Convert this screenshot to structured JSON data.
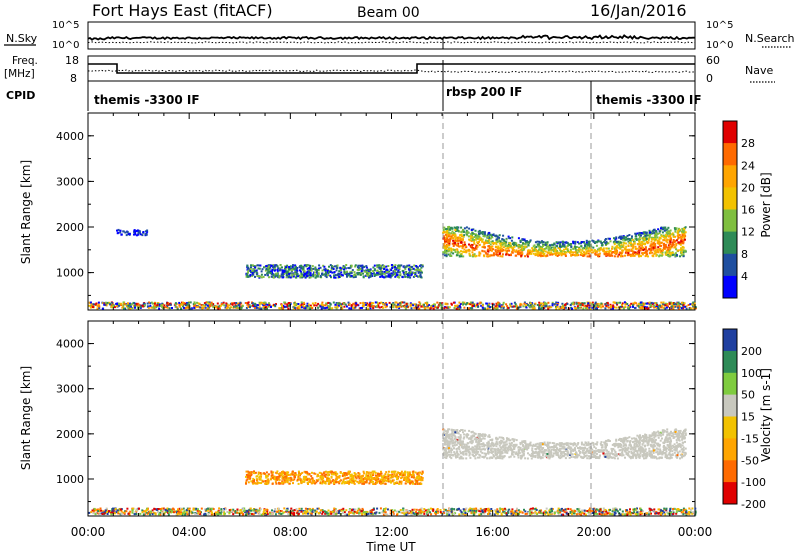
{
  "header": {
    "station": "Fort Hays East (fitACF)",
    "beam": "Beam 00",
    "date": "16/Jan/2016"
  },
  "strips": {
    "nsky": {
      "left_label": "N.Sky",
      "right_label": "N.Search",
      "left_ticks": [
        "10^5",
        "10^0"
      ],
      "right_ticks": [
        "10^5",
        "10^0"
      ]
    },
    "freq": {
      "left_label_1": "Freq.",
      "left_label_2": "[MHz]",
      "left_ticks": [
        "18",
        "8"
      ],
      "right_label": "Nave",
      "right_ticks": [
        "60",
        "0"
      ]
    },
    "cpid": {
      "label": "CPID",
      "segments": [
        {
          "start": 0,
          "end": 14,
          "name": "themis -3300 IF"
        },
        {
          "start": 14,
          "end": 20,
          "name": "rbsp 200 IF"
        },
        {
          "start": 20,
          "end": 24,
          "name": "themis -3300 IF"
        }
      ]
    }
  },
  "chart_data": [
    {
      "type": "heatmap",
      "name": "power",
      "ylabel": "Slant Range [km]",
      "ylim": [
        180,
        4500
      ],
      "yticks": [
        1000,
        2000,
        3000,
        4000
      ],
      "xlim": [
        0,
        24
      ],
      "colorbar": {
        "label": "Power [dB]",
        "ticks": [
          "28",
          "24",
          "20",
          "16",
          "12",
          "8",
          "4"
        ],
        "colors": [
          "#e00000",
          "#ff6a00",
          "#ffa500",
          "#f2c200",
          "#7fbf3f",
          "#2e8b57",
          "#1f4fa0",
          "#0000ff"
        ]
      },
      "scatter_bands": [
        {
          "t_start": 0,
          "t_end": 24,
          "range_center": 300,
          "range_width": 140,
          "level": "mixed"
        },
        {
          "t_start": 1.1,
          "t_end": 2.3,
          "range_center": 1900,
          "range_width": 120,
          "level": "low"
        },
        {
          "t_start": 6.2,
          "t_end": 13.2,
          "range_center": 1050,
          "range_width": 280,
          "level": "mid-low"
        },
        {
          "t_start": 14.0,
          "t_end": 23.6,
          "range_center": 1700,
          "range_width": 650,
          "level": "high"
        }
      ]
    },
    {
      "type": "heatmap",
      "name": "velocity",
      "ylabel": "Slant Range [km]",
      "xlabel": "Time UT",
      "ylim": [
        180,
        4500
      ],
      "yticks": [
        1000,
        2000,
        3000,
        4000
      ],
      "xlim": [
        0,
        24
      ],
      "xticks": [
        "00:00",
        "04:00",
        "08:00",
        "12:00",
        "16:00",
        "20:00",
        "00:00"
      ],
      "colorbar": {
        "label": "Velocity [m s-1]",
        "ticks": [
          "200",
          "100",
          "50",
          "15",
          "-15",
          "-50",
          "-100",
          "-200"
        ],
        "colors": [
          "#1f3fa0",
          "#2e8b57",
          "#7fcc3f",
          "#c8c8be",
          "#f2c200",
          "#ffa500",
          "#ff6a00",
          "#e00000"
        ]
      },
      "scatter_bands": [
        {
          "t_start": 0,
          "t_end": 24,
          "range_center": 300,
          "range_width": 140,
          "level": "mixed"
        },
        {
          "t_start": 6.2,
          "t_end": 13.2,
          "range_center": 1050,
          "range_width": 280,
          "level": "negative"
        },
        {
          "t_start": 14.0,
          "t_end": 23.6,
          "range_center": 1800,
          "range_width": 650,
          "level": "ground"
        }
      ]
    }
  ],
  "xticks_labels": [
    "00:00",
    "04:00",
    "08:00",
    "12:00",
    "16:00",
    "20:00",
    "00:00"
  ],
  "xlabel": "Time UT"
}
